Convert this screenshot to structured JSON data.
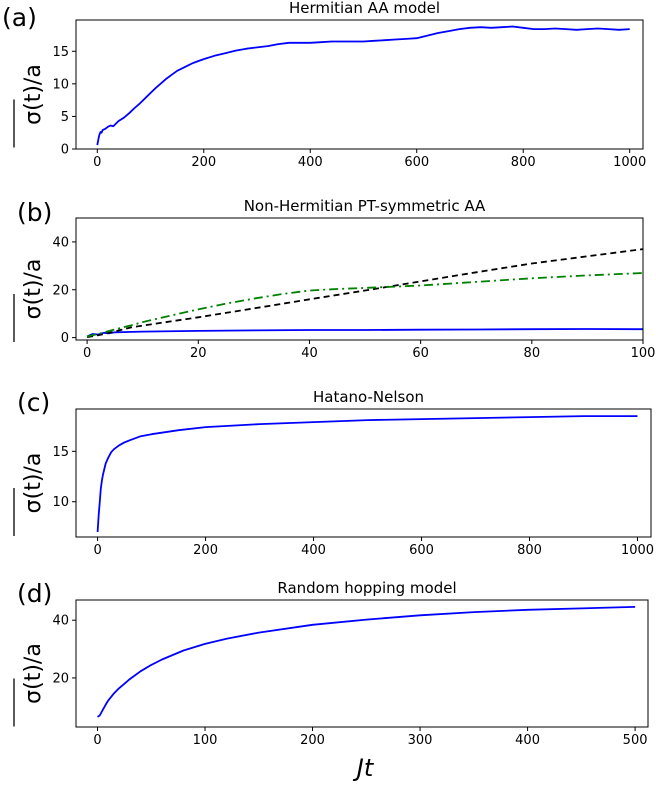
{
  "xlabel": "Jt",
  "chart_data": [
    {
      "type": "line",
      "panel_label": "(a)",
      "title": "Hermitian AA model",
      "ylabel": "σ(t)/a",
      "xlim": [
        -40,
        1025
      ],
      "ylim": [
        0,
        19.8
      ],
      "xticks": [
        0,
        200,
        400,
        600,
        800,
        1000
      ],
      "yticks": [
        0,
        5,
        10,
        15
      ],
      "series": [
        {
          "color": "#0000ff",
          "style": "solid",
          "x": [
            0,
            2,
            4,
            6,
            8,
            10,
            15,
            20,
            25,
            30,
            35,
            40,
            50,
            60,
            70,
            80,
            90,
            100,
            110,
            120,
            130,
            140,
            150,
            160,
            170,
            180,
            190,
            200,
            220,
            240,
            260,
            280,
            300,
            320,
            340,
            360,
            380,
            400,
            420,
            440,
            460,
            480,
            500,
            520,
            540,
            560,
            580,
            600,
            620,
            640,
            660,
            680,
            700,
            720,
            740,
            760,
            780,
            800,
            820,
            840,
            860,
            880,
            900,
            920,
            940,
            960,
            980,
            1000
          ],
          "y": [
            0.6,
            1.5,
            2.2,
            2.6,
            2.5,
            2.9,
            3.1,
            3.4,
            3.6,
            3.5,
            3.9,
            4.3,
            4.8,
            5.5,
            6.3,
            7.0,
            7.8,
            8.6,
            9.4,
            10.1,
            10.8,
            11.4,
            12.0,
            12.4,
            12.8,
            13.2,
            13.5,
            13.8,
            14.3,
            14.7,
            15.1,
            15.4,
            15.6,
            15.8,
            16.1,
            16.3,
            16.3,
            16.3,
            16.4,
            16.5,
            16.5,
            16.5,
            16.5,
            16.6,
            16.7,
            16.8,
            16.9,
            17.0,
            17.4,
            17.8,
            18.1,
            18.4,
            18.6,
            18.7,
            18.6,
            18.7,
            18.8,
            18.6,
            18.4,
            18.4,
            18.5,
            18.4,
            18.3,
            18.4,
            18.5,
            18.4,
            18.3,
            18.4
          ]
        }
      ]
    },
    {
      "type": "line",
      "panel_label": "(b)",
      "title": "Non-Hermitian PT-symmetric AA",
      "ylabel": "σ(t)/a",
      "xlim": [
        -2,
        100
      ],
      "ylim": [
        -1,
        50
      ],
      "xticks": [
        0,
        20,
        40,
        60,
        80,
        100
      ],
      "yticks": [
        0,
        20,
        40
      ],
      "series": [
        {
          "color": "#0000ff",
          "style": "solid",
          "x": [
            0,
            1,
            2,
            3,
            4,
            5,
            10,
            20,
            30,
            40,
            50,
            60,
            70,
            80,
            90,
            100
          ],
          "y": [
            0.5,
            1.5,
            1.3,
            2.0,
            1.8,
            2.2,
            2.5,
            2.8,
            3.0,
            3.2,
            3.2,
            3.3,
            3.4,
            3.5,
            3.6,
            3.5
          ]
        },
        {
          "color": "#000000",
          "style": "dashed",
          "x": [
            0,
            2,
            4,
            6,
            8,
            10,
            20,
            30,
            40,
            50,
            60,
            70,
            80,
            90,
            100
          ],
          "y": [
            0.2,
            1.0,
            2.0,
            3.2,
            4.3,
            5.0,
            8.5,
            12.2,
            16.0,
            19.7,
            23.5,
            27.3,
            31.0,
            34.0,
            37.0
          ]
        },
        {
          "color": "#008000",
          "style": "dashdot",
          "x": [
            0,
            2,
            4,
            6,
            8,
            10,
            15,
            20,
            25,
            30,
            35,
            40,
            45,
            50,
            60,
            70,
            80,
            90,
            100
          ],
          "y": [
            0.5,
            1.5,
            2.8,
            4.0,
            5.2,
            6.5,
            9.2,
            11.8,
            14.2,
            16.3,
            18.2,
            19.7,
            20.3,
            20.8,
            21.8,
            23.3,
            24.8,
            26.0,
            27.0
          ]
        }
      ]
    },
    {
      "type": "line",
      "panel_label": "(c)",
      "title": "Hatano-Nelson",
      "ylabel": "σ(t)/a",
      "xlim": [
        -40,
        1025
      ],
      "ylim": [
        6.5,
        19.2
      ],
      "xticks": [
        0,
        200,
        400,
        600,
        800,
        1000
      ],
      "yticks": [
        10,
        15
      ],
      "series": [
        {
          "color": "#0000ff",
          "style": "solid",
          "x": [
            0,
            2,
            4,
            6,
            8,
            10,
            15,
            20,
            25,
            30,
            40,
            50,
            60,
            80,
            100,
            150,
            200,
            300,
            400,
            500,
            600,
            700,
            800,
            900,
            1000
          ],
          "y": [
            7.0,
            8.7,
            10.0,
            11.3,
            12.1,
            12.7,
            13.8,
            14.4,
            14.9,
            15.2,
            15.6,
            15.9,
            16.1,
            16.5,
            16.7,
            17.1,
            17.4,
            17.7,
            17.9,
            18.1,
            18.2,
            18.3,
            18.4,
            18.5,
            18.5
          ]
        }
      ]
    },
    {
      "type": "line",
      "panel_label": "(d)",
      "title": "Random hopping model",
      "ylabel": "σ(t)/a",
      "xlim": [
        -20,
        512
      ],
      "ylim": [
        3,
        47
      ],
      "xticks": [
        0,
        100,
        200,
        300,
        400,
        500
      ],
      "yticks": [
        20,
        40
      ],
      "series": [
        {
          "color": "#0000ff",
          "style": "solid",
          "x": [
            0,
            2,
            5,
            8,
            10,
            15,
            20,
            30,
            40,
            50,
            60,
            80,
            100,
            120,
            150,
            200,
            250,
            300,
            350,
            400,
            450,
            500
          ],
          "y": [
            6.5,
            7.0,
            9.0,
            11.0,
            12.2,
            14.5,
            16.4,
            19.6,
            22.3,
            24.5,
            26.4,
            29.5,
            31.8,
            33.6,
            35.7,
            38.4,
            40.2,
            41.7,
            42.8,
            43.6,
            44.1,
            44.6
          ]
        }
      ]
    }
  ]
}
